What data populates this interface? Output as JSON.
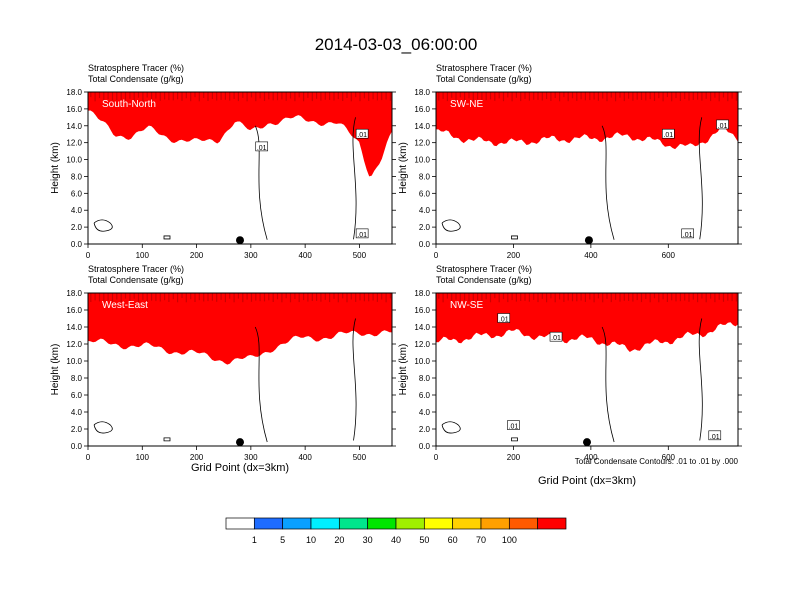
{
  "figure": {
    "title": "2014-03-03_06:00:00",
    "field_label_1": "Stratosphere Tracer   (%)",
    "field_label_2": "Total Condensate   (g/kg)",
    "ylabel": "Height (km)",
    "xlabel": "Grid Point (dx=3km)",
    "contour_note": "Total Condensate Contours: .01 to .01 by .000",
    "contour_label": ".01"
  },
  "colorbar": {
    "colors": [
      "#ffffff",
      "#1e6cff",
      "#0aa0ff",
      "#00f0ff",
      "#00e68c",
      "#00e600",
      "#a0f000",
      "#ffff00",
      "#ffd200",
      "#ffa000",
      "#ff5a00",
      "#ff0000"
    ],
    "labels": [
      "1",
      "5",
      "10",
      "20",
      "30",
      "40",
      "50",
      "60",
      "70",
      "100"
    ]
  },
  "chart_data": [
    {
      "type": "heatmap",
      "panel": "South-North",
      "xlim": [
        0,
        560
      ],
      "ylim": [
        0,
        18
      ],
      "xticks": [
        "0",
        "100",
        "200",
        "300",
        "400",
        "500"
      ],
      "yticks": [
        "0.0",
        "2.0",
        "4.0",
        "6.0",
        "8.0",
        "10.0",
        "12.0",
        "14.0",
        "16.0",
        "18.0"
      ],
      "tracer_band_bottom_km": [
        [
          0,
          15.8
        ],
        [
          20,
          14.6
        ],
        [
          50,
          13.0
        ],
        [
          80,
          12.8
        ],
        [
          110,
          13.6
        ],
        [
          150,
          12.6
        ],
        [
          200,
          12.0
        ],
        [
          240,
          12.4
        ],
        [
          270,
          14.5
        ],
        [
          300,
          13.2
        ],
        [
          330,
          14.4
        ],
        [
          380,
          14.8
        ],
        [
          420,
          14.6
        ],
        [
          460,
          14.2
        ],
        [
          500,
          12.0
        ],
        [
          520,
          8.0
        ],
        [
          540,
          10.0
        ],
        [
          560,
          13.0
        ]
      ],
      "marker_x": 280,
      "contour_labels_at": [
        [
          320,
          11.5
        ],
        [
          505,
          13.0
        ],
        [
          505,
          1.2
        ]
      ]
    },
    {
      "type": "heatmap",
      "panel": "SW-NE",
      "xlim": [
        0,
        780
      ],
      "ylim": [
        0,
        18
      ],
      "xticks": [
        "0",
        "200",
        "400",
        "600"
      ],
      "yticks": [
        "0.0",
        "2.0",
        "4.0",
        "6.0",
        "8.0",
        "10.0",
        "12.0",
        "14.0",
        "16.0",
        "18.0"
      ],
      "tracer_band_bottom_km": [
        [
          0,
          13.4
        ],
        [
          40,
          12.8
        ],
        [
          100,
          12.2
        ],
        [
          200,
          12.0
        ],
        [
          300,
          12.4
        ],
        [
          400,
          12.5
        ],
        [
          500,
          12.8
        ],
        [
          600,
          11.8
        ],
        [
          660,
          11.4
        ],
        [
          700,
          12.5
        ],
        [
          740,
          13.6
        ],
        [
          780,
          12.6
        ]
      ],
      "marker_x": 395,
      "contour_labels_at": [
        [
          600,
          13.0
        ],
        [
          740,
          14.1
        ],
        [
          650,
          1.2
        ]
      ]
    },
    {
      "type": "heatmap",
      "panel": "West-East",
      "xlim": [
        0,
        560
      ],
      "ylim": [
        0,
        18
      ],
      "xticks": [
        "0",
        "100",
        "200",
        "300",
        "400",
        "500"
      ],
      "yticks": [
        "0.0",
        "2.0",
        "4.0",
        "6.0",
        "8.0",
        "10.0",
        "12.0",
        "14.0",
        "16.0",
        "18.0"
      ],
      "tracer_band_bottom_km": [
        [
          0,
          12.2
        ],
        [
          50,
          12.0
        ],
        [
          120,
          11.6
        ],
        [
          200,
          10.8
        ],
        [
          260,
          10.0
        ],
        [
          300,
          10.2
        ],
        [
          340,
          11.6
        ],
        [
          400,
          12.8
        ],
        [
          450,
          12.8
        ],
        [
          500,
          13.4
        ],
        [
          560,
          13.2
        ]
      ],
      "marker_x": 280,
      "contour_labels_at": []
    },
    {
      "type": "heatmap",
      "panel": "NW-SE",
      "xlim": [
        0,
        780
      ],
      "ylim": [
        0,
        18
      ],
      "xticks": [
        "0",
        "200",
        "400",
        "600"
      ],
      "yticks": [
        "0.0",
        "2.0",
        "4.0",
        "6.0",
        "8.0",
        "10.0",
        "12.0",
        "14.0",
        "16.0",
        "18.0"
      ],
      "tracer_band_bottom_km": [
        [
          0,
          12.2
        ],
        [
          100,
          12.8
        ],
        [
          200,
          13.4
        ],
        [
          300,
          12.6
        ],
        [
          400,
          12.6
        ],
        [
          500,
          11.4
        ],
        [
          560,
          12.0
        ],
        [
          640,
          12.8
        ],
        [
          700,
          13.4
        ],
        [
          780,
          14.6
        ]
      ],
      "marker_x": 390,
      "contour_labels_at": [
        [
          175,
          15.0
        ],
        [
          310,
          12.8
        ],
        [
          200,
          2.4
        ],
        [
          720,
          1.2
        ]
      ]
    }
  ]
}
